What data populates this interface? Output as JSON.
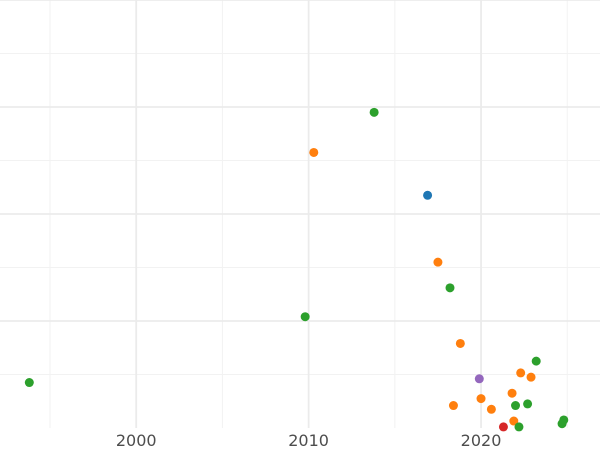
{
  "chart_data": {
    "type": "scatter",
    "title": "",
    "xlabel": "",
    "ylabel": "",
    "xlim": [
      1992.1,
      2026.9
    ],
    "ylim": [
      0,
      8
    ],
    "x_ticks": [
      2000,
      2010,
      2020
    ],
    "x_tick_labels": [
      "2000",
      "2010",
      "2020"
    ],
    "y_gridlines": [
      1,
      2,
      3,
      4,
      5,
      6,
      7,
      8
    ],
    "grid": true,
    "legend": "none",
    "series": [
      {
        "color": "#1f77b4",
        "points": [
          {
            "x": 2016.9,
            "y": 4.35
          }
        ]
      },
      {
        "color": "#ff7f0e",
        "points": [
          {
            "x": 2010.3,
            "y": 5.15
          },
          {
            "x": 2017.5,
            "y": 3.1
          },
          {
            "x": 2018.8,
            "y": 1.58
          },
          {
            "x": 2022.3,
            "y": 1.03
          },
          {
            "x": 2022.9,
            "y": 0.95
          },
          {
            "x": 2021.8,
            "y": 0.65
          },
          {
            "x": 2020.0,
            "y": 0.55
          },
          {
            "x": 2018.4,
            "y": 0.42
          },
          {
            "x": 2020.6,
            "y": 0.35
          },
          {
            "x": 2021.9,
            "y": 0.13
          }
        ]
      },
      {
        "color": "#2ca02c",
        "points": [
          {
            "x": 1993.8,
            "y": 0.85
          },
          {
            "x": 2009.8,
            "y": 2.08
          },
          {
            "x": 2013.8,
            "y": 5.9
          },
          {
            "x": 2018.2,
            "y": 2.62
          },
          {
            "x": 2023.2,
            "y": 1.25
          },
          {
            "x": 2022.7,
            "y": 0.45
          },
          {
            "x": 2022.0,
            "y": 0.42
          },
          {
            "x": 2024.8,
            "y": 0.15
          },
          {
            "x": 2024.7,
            "y": 0.08
          },
          {
            "x": 2022.2,
            "y": 0.02
          }
        ]
      },
      {
        "color": "#d62728",
        "points": [
          {
            "x": 2021.3,
            "y": 0.02
          }
        ]
      },
      {
        "color": "#9467bd",
        "points": [
          {
            "x": 2019.9,
            "y": 0.92
          }
        ]
      }
    ]
  }
}
